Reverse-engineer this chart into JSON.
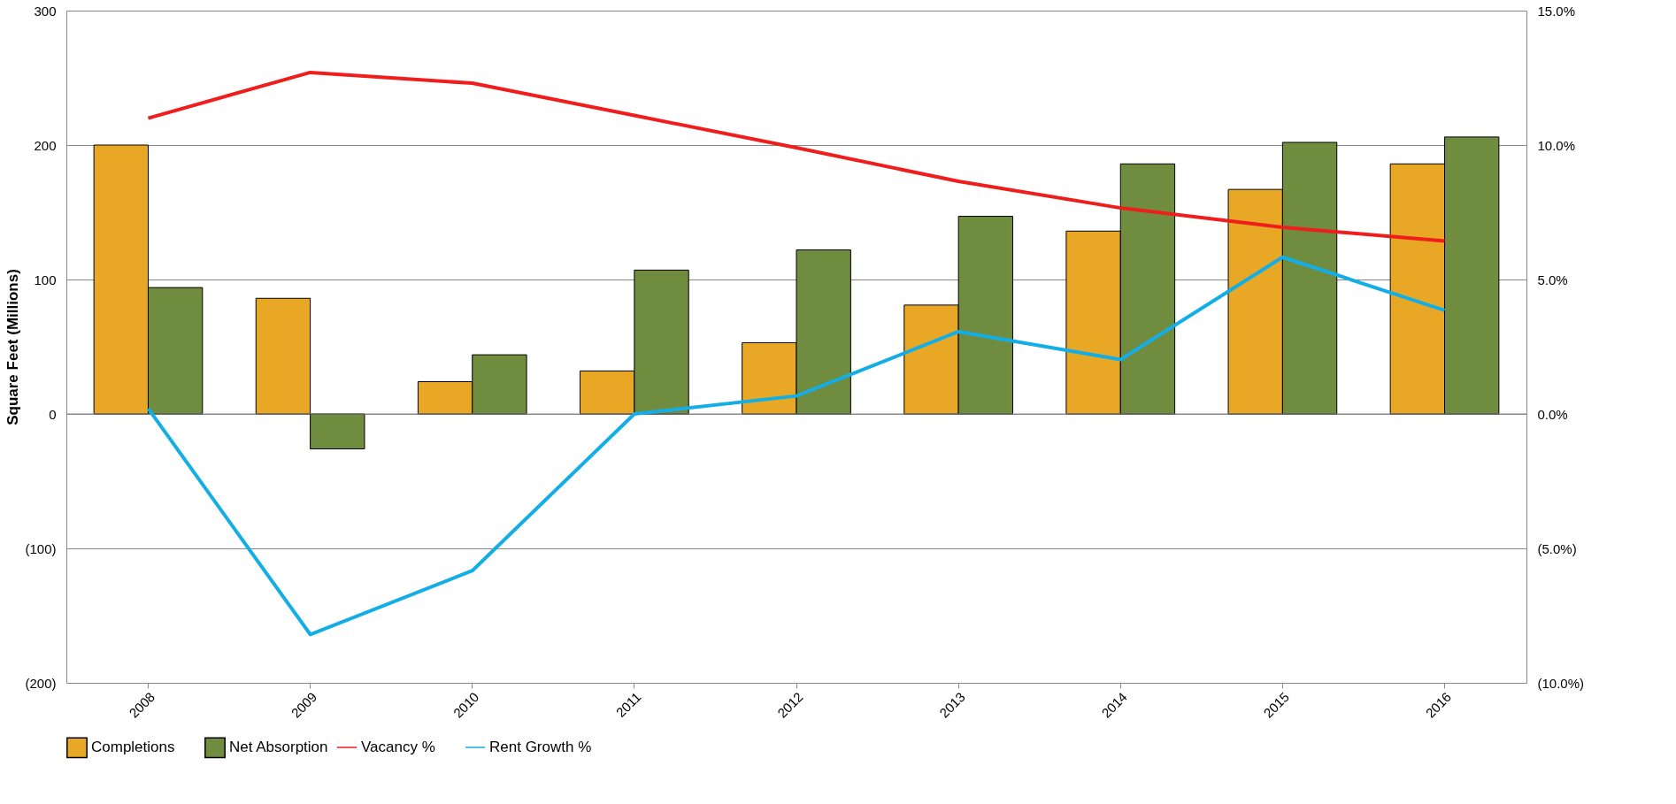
{
  "chart_data": {
    "type": "bar",
    "ylabel": "Square Feet (Millions)",
    "categories": [
      "2008",
      "2009",
      "2010",
      "2011",
      "2012",
      "2013",
      "2014",
      "2015",
      "2016"
    ],
    "series": [
      {
        "name": "Completions",
        "color": "#e8a825",
        "values": [
          200,
          86,
          24,
          32,
          53,
          81,
          136,
          167,
          186
        ]
      },
      {
        "name": "Net Absorption",
        "color": "#6f8c3f",
        "values": [
          94,
          -26,
          44,
          107,
          122,
          147,
          186,
          202,
          206
        ]
      },
      {
        "name": "Vacancy %",
        "type": "line",
        "axis": "y2",
        "color": "#f01d1d",
        "values": [
          11.0,
          12.7,
          12.3,
          11.1,
          9.9,
          8.65,
          7.66,
          6.94,
          6.43
        ]
      },
      {
        "name": "Rent Growth %",
        "type": "line",
        "axis": "y2",
        "color": "#14aee6",
        "values": [
          0.2,
          -8.2,
          -5.83,
          0.0,
          0.67,
          3.06,
          2.02,
          5.83,
          3.85
        ]
      }
    ],
    "ylim": [
      -200,
      300
    ],
    "yticks": [
      {
        "value": -200,
        "label": "(200)"
      },
      {
        "value": -100,
        "label": "(100)"
      },
      0,
      100,
      200,
      300
    ],
    "y2lim": [
      -10,
      15
    ],
    "y2ticks": [
      {
        "value": -10,
        "label": "(10.0%)"
      },
      {
        "value": -5,
        "label": "(5.0%)"
      },
      {
        "value": 0,
        "label": "0.0%"
      },
      {
        "value": 5,
        "label": "5.0%"
      },
      {
        "value": 10,
        "label": "10.0%"
      },
      {
        "value": 15,
        "label": "15.0%"
      }
    ],
    "grid": "y",
    "legend": "bottom",
    "marker": "none",
    "line_style": "solid"
  }
}
